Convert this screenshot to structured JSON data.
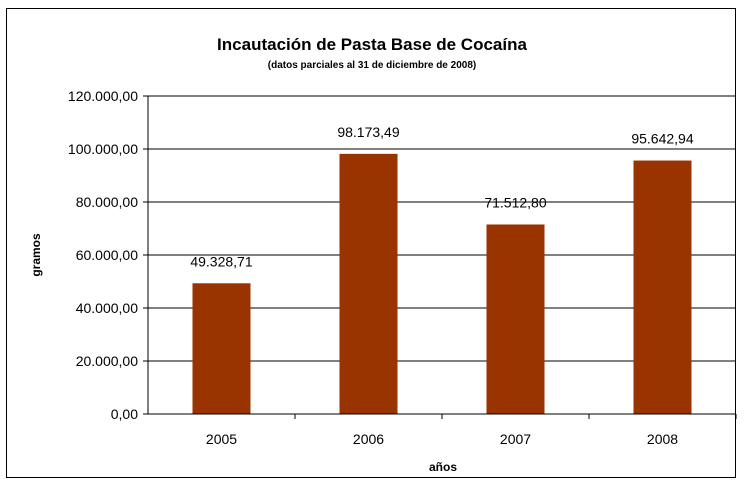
{
  "chart_data": {
    "type": "bar",
    "title": "Incautación de Pasta Base de Cocaína",
    "subtitle": "(datos parciales al 31 de diciembre de 2008)",
    "xlabel": "años",
    "ylabel": "gramos",
    "categories": [
      "2005",
      "2006",
      "2007",
      "2008"
    ],
    "values": [
      49328.71,
      98173.49,
      71512.8,
      95642.94
    ],
    "value_labels": [
      "49.328,71",
      "98.173,49",
      "71.512,80",
      "95.642,94"
    ],
    "ylim": [
      0,
      120000
    ],
    "yticks": [
      0,
      20000,
      40000,
      60000,
      80000,
      100000,
      120000
    ],
    "ytick_labels": [
      "0,00",
      "20.000,00",
      "40.000,00",
      "60.000,00",
      "80.000,00",
      "100.000,00",
      "120.000,00"
    ],
    "grid": true,
    "legend": "none",
    "bar_color": "#993300"
  }
}
